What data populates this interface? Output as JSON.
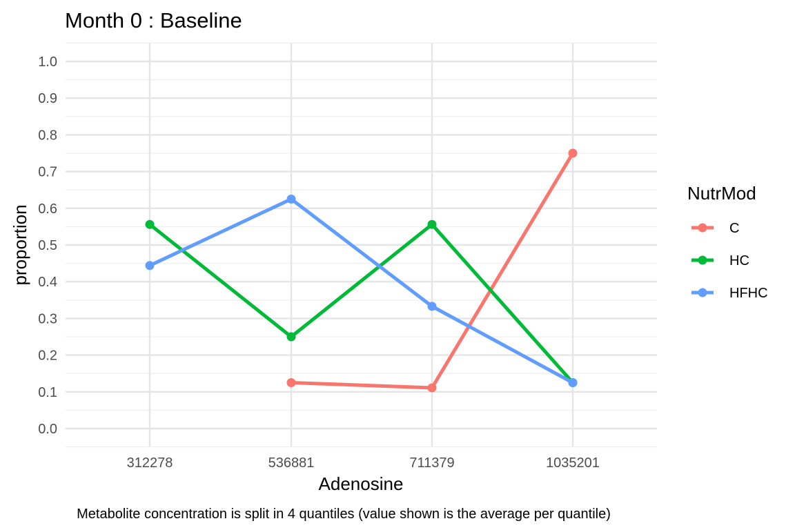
{
  "chart_data": {
    "type": "line",
    "title": "Month 0 : Baseline",
    "xlabel": "Adenosine",
    "ylabel": "proportion",
    "caption": "Metabolite concentration is split in 4 quantiles (value shown is the average per quantile)",
    "categories": [
      "312278",
      "536881",
      "711379",
      "1035201"
    ],
    "yticks": [
      "0.0",
      "0.1",
      "0.2",
      "0.3",
      "0.4",
      "0.5",
      "0.6",
      "0.7",
      "0.8",
      "0.9",
      "1.0"
    ],
    "ylim": [
      0,
      1
    ],
    "grid": true,
    "legend": {
      "title": "NutrMod",
      "position": "right"
    },
    "series": [
      {
        "name": "C",
        "color": "#F8766D",
        "values": [
          null,
          0.125,
          0.111,
          0.75
        ]
      },
      {
        "name": "HC",
        "color": "#00BA38",
        "values": [
          0.556,
          0.25,
          0.556,
          0.125
        ]
      },
      {
        "name": "HFHC",
        "color": "#619CFF",
        "values": [
          0.444,
          0.625,
          0.333,
          0.125
        ]
      }
    ]
  }
}
